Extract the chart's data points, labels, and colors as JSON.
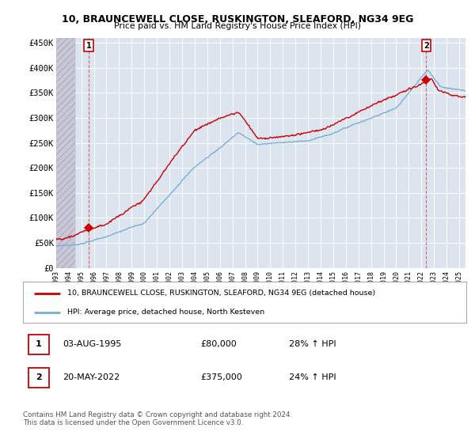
{
  "title": "10, BRAUNCEWELL CLOSE, RUSKINGTON, SLEAFORD, NG34 9EG",
  "subtitle": "Price paid vs. HM Land Registry's House Price Index (HPI)",
  "ylabel_ticks": [
    "£0",
    "£50K",
    "£100K",
    "£150K",
    "£200K",
    "£250K",
    "£300K",
    "£350K",
    "£400K",
    "£450K"
  ],
  "ytick_values": [
    0,
    50000,
    100000,
    150000,
    200000,
    250000,
    300000,
    350000,
    400000,
    450000
  ],
  "ylim": [
    0,
    460000
  ],
  "xlim_start": 1993.0,
  "xlim_end": 2025.5,
  "x_years": [
    1993,
    1994,
    1995,
    1996,
    1997,
    1998,
    1999,
    2000,
    2001,
    2002,
    2003,
    2004,
    2005,
    2006,
    2007,
    2008,
    2009,
    2010,
    2011,
    2012,
    2013,
    2014,
    2015,
    2016,
    2017,
    2018,
    2019,
    2020,
    2021,
    2022,
    2023,
    2024,
    2025
  ],
  "legend_entry1": "10, BRAUNCEWELL CLOSE, RUSKINGTON, SLEAFORD, NG34 9EG (detached house)",
  "legend_entry2": "HPI: Average price, detached house, North Kesteven",
  "transaction1_date": "03-AUG-1995",
  "transaction1_price": "£80,000",
  "transaction1_hpi": "28% ↑ HPI",
  "transaction2_date": "20-MAY-2022",
  "transaction2_price": "£375,000",
  "transaction2_hpi": "24% ↑ HPI",
  "footer": "Contains HM Land Registry data © Crown copyright and database right 2024.\nThis data is licensed under the Open Government Licence v3.0.",
  "line_color_price": "#cc0000",
  "line_color_hpi": "#7ab0d4",
  "bg_color": "#dce4ef",
  "grid_color": "#ffffff",
  "hatch_color": "#c8c8d8",
  "marker_box_color": "#cc0000",
  "transaction1_x": 1995.58,
  "transaction1_y": 80000,
  "transaction2_x": 2022.38,
  "transaction2_y": 375000,
  "vline_color": "#dd4444"
}
